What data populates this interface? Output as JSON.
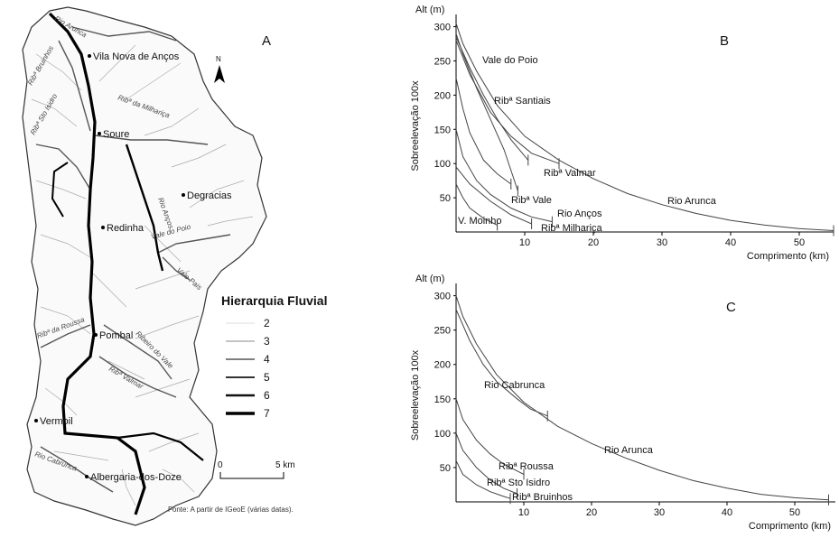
{
  "map": {
    "panel_letter": "A",
    "places": [
      {
        "name": "Vila Nova de Anços"
      },
      {
        "name": "Soure"
      },
      {
        "name": "Redinha"
      },
      {
        "name": "Degracias"
      },
      {
        "name": "Pombal"
      },
      {
        "name": "Vermoil"
      },
      {
        "name": "Albergaria-dos-Doze"
      }
    ],
    "rivers": [
      "Rio Arunca",
      "Ribª Bruinhos",
      "Ribª da Milhariça",
      "Ribª Sto Isidro",
      "Rio Anços",
      "Vale do Poio",
      "Vale Pais",
      "Ribª da Roussa",
      "Ribeiro do Vale",
      "Ribª Valmar",
      "Rio Cabrunca"
    ],
    "north_label": "N",
    "scale_start": "0",
    "scale_end": "5 km",
    "source": "Fonte: A partir de IGeoE (várias datas).",
    "legend": {
      "title": "Hierarquia Fluvial",
      "items": [
        {
          "label": "2",
          "order": 2
        },
        {
          "label": "3",
          "order": 3
        },
        {
          "label": "4",
          "order": 4
        },
        {
          "label": "5",
          "order": 5
        },
        {
          "label": "6",
          "order": 6
        },
        {
          "label": "7",
          "order": 7
        }
      ]
    }
  },
  "chart_data": [
    {
      "type": "line",
      "panel_letter": "B",
      "ylabel": "Sobreelevação  100x",
      "y_unit_label": "Alt (m)",
      "xlabel": "Comprimento (km)",
      "xlim": [
        0,
        55
      ],
      "ylim": [
        0,
        310
      ],
      "x_ticks": [
        10,
        20,
        30,
        40,
        50
      ],
      "y_ticks": [
        50,
        100,
        150,
        200,
        250,
        300
      ],
      "series": [
        {
          "name": "Rio Arunca",
          "x": [
            0,
            1,
            3,
            6,
            10,
            15,
            20,
            25,
            30,
            35,
            40,
            45,
            50,
            55
          ],
          "y": [
            305,
            275,
            235,
            185,
            140,
            105,
            78,
            56,
            40,
            27,
            17,
            10,
            5,
            2
          ]
        },
        {
          "name": "Vale do Poio",
          "x": [
            0,
            1,
            3,
            5,
            7,
            9
          ],
          "y": [
            290,
            260,
            210,
            165,
            120,
            60
          ]
        },
        {
          "name": "Ribª Santiais",
          "x": [
            0,
            2,
            4,
            6,
            8,
            10.5
          ],
          "y": [
            285,
            240,
            200,
            165,
            135,
            105
          ]
        },
        {
          "name": "Ribª Valmar",
          "x": [
            0,
            2,
            5,
            8,
            11,
            15
          ],
          "y": [
            280,
            230,
            175,
            140,
            115,
            100
          ]
        },
        {
          "name": "Ribª Vale",
          "x": [
            0,
            1,
            2,
            4,
            6,
            8
          ],
          "y": [
            225,
            180,
            145,
            105,
            85,
            70
          ]
        },
        {
          "name": "Rio Anços",
          "x": [
            0,
            1,
            3,
            5,
            8,
            11,
            14
          ],
          "y": [
            150,
            110,
            75,
            55,
            35,
            22,
            15
          ]
        },
        {
          "name": "Ribª Milhariça",
          "x": [
            0,
            2,
            5,
            8,
            11
          ],
          "y": [
            95,
            70,
            45,
            25,
            12
          ]
        },
        {
          "name": "V. Moinho",
          "x": [
            0,
            1,
            2,
            4,
            6
          ],
          "y": [
            70,
            50,
            35,
            20,
            10
          ]
        }
      ]
    },
    {
      "type": "line",
      "panel_letter": "C",
      "ylabel": "Sobreelevação  100x",
      "y_unit_label": "Alt (m)",
      "xlabel": "Comprimento (km)",
      "xlim": [
        0,
        56
      ],
      "ylim": [
        0,
        310
      ],
      "x_ticks": [
        10,
        20,
        30,
        40,
        50
      ],
      "y_ticks": [
        50,
        100,
        150,
        200,
        250,
        300
      ],
      "series": [
        {
          "name": "Rio Arunca",
          "x": [
            0,
            1,
            3,
            6,
            10,
            15,
            20,
            25,
            30,
            35,
            40,
            45,
            50,
            55
          ],
          "y": [
            300,
            270,
            230,
            185,
            145,
            110,
            85,
            64,
            46,
            31,
            20,
            11,
            6,
            3
          ]
        },
        {
          "name": "Rio Cabrunca",
          "x": [
            0,
            2,
            4,
            6,
            9,
            11,
            13.5
          ],
          "y": [
            280,
            235,
            200,
            175,
            150,
            135,
            125
          ]
        },
        {
          "name": "Ribª Roussa",
          "x": [
            0,
            1,
            3,
            5,
            7,
            9,
            10
          ],
          "y": [
            150,
            120,
            90,
            70,
            55,
            45,
            40
          ]
        },
        {
          "name": "Ribª Sto Isidro",
          "x": [
            0,
            1,
            3,
            5,
            7,
            9
          ],
          "y": [
            100,
            75,
            50,
            32,
            20,
            12
          ]
        },
        {
          "name": "Ribª Bruinhos",
          "x": [
            0,
            1,
            3,
            5,
            7,
            8
          ],
          "y": [
            60,
            40,
            25,
            15,
            8,
            5
          ]
        }
      ]
    }
  ]
}
